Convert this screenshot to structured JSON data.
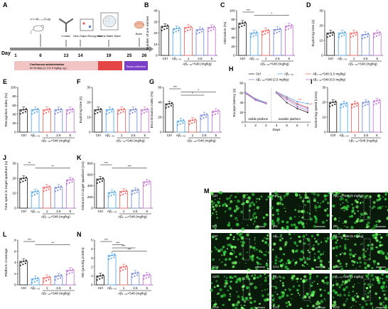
{
  "colors": {
    "ctrl": "#2b2b2b",
    "abeta": "#5aa9e6",
    "d1": "#ef6a6a",
    "d25": "#7d8fd8",
    "d5": "#c77ad8",
    "red": "#e03a3a",
    "purple": "#9a4ad0"
  },
  "panelA": {
    "letter": "A",
    "injection": "i.c.v. Aβ₁₋₄₂ (3 μg)",
    "tests": [
      "Y-maze",
      "New Object Recognition",
      "Morris Water Maze",
      "Brain"
    ],
    "day_label": "Day",
    "days": [
      "1",
      "6",
      "13",
      "14",
      "19",
      "25",
      "26"
    ],
    "admin_text": "Continuous administration",
    "admin_detail": "for 25 days (1, 2.5, 5 mg/kg, i.g.)",
    "tissue": "Tissue collection"
  },
  "chart_data": [
    {
      "letter": "B",
      "type": "bar",
      "ylabel": "Number of arm entries",
      "ylim": [
        0,
        40
      ],
      "yticks": [
        "0",
        "10",
        "20",
        "30",
        "40"
      ],
      "categories": [
        "Ctrl",
        "Aβ₁₋₄₂",
        "1",
        "2.5",
        "5"
      ],
      "values": [
        26,
        24,
        25,
        23,
        25
      ],
      "dose_label": "Aβ₁₋₄₂+548 (mg/kg)",
      "sig": []
    },
    {
      "letter": "C",
      "type": "bar",
      "ylabel": "Alternation (%)",
      "ylim": [
        0,
        100
      ],
      "yticks": [
        "0",
        "20",
        "40",
        "60",
        "80",
        "100"
      ],
      "categories": [
        "Ctrl",
        "Aβ₁₋₄₂",
        "1",
        "2.5",
        "5"
      ],
      "values": [
        72,
        50,
        55,
        58,
        66
      ],
      "dose_label": "Aβ₁₋₄₂+548 (mg/kg)",
      "sig": [
        {
          "from": 0,
          "to": 1,
          "text": "***"
        },
        {
          "from": 1,
          "to": 4,
          "text": "*"
        }
      ]
    },
    {
      "letter": "D",
      "type": "bar",
      "ylabel": "Exploring time (s)",
      "ylim": [
        0,
        30
      ],
      "yticks": [
        "0",
        "10",
        "20",
        "30"
      ],
      "categories": [
        "Ctrl",
        "Aβ₁₋₄₂",
        "1",
        "2.5",
        "5"
      ],
      "values": [
        15,
        15,
        15,
        14,
        15
      ],
      "dose_label": "Aβ₁₋₄₂+548 (mg/kg)",
      "sig": []
    },
    {
      "letter": "E",
      "type": "bar",
      "ylabel": "Recognition index (%)",
      "ylim": [
        0,
        100
      ],
      "yticks": [
        "0",
        "20",
        "40",
        "60",
        "80",
        "100"
      ],
      "categories": [
        "Ctrl",
        "Aβ₁₋₄₂",
        "1",
        "2.5",
        "5"
      ],
      "values": [
        50,
        50,
        50,
        50,
        50
      ],
      "dose_label": "Aβ₁₋₄₂+548 (mg/kg)",
      "sig": []
    },
    {
      "letter": "F",
      "type": "bar",
      "ylabel": "Exploring time (s)",
      "ylim": [
        0,
        30
      ],
      "yticks": [
        "0",
        "10",
        "20",
        "30"
      ],
      "categories": [
        "Ctrl",
        "Aβ₁₋₄₂",
        "1",
        "2.5",
        "5"
      ],
      "values": [
        15,
        15,
        15,
        15,
        15
      ],
      "dose_label": "Aβ₁₋₄₂+548 (mg/kg)",
      "sig": []
    },
    {
      "letter": "G",
      "type": "bar",
      "ylabel": "Discrimination index (%)",
      "ylim": [
        0,
        60
      ],
      "yticks": [
        "0",
        "20",
        "40",
        "60"
      ],
      "categories": [
        "Ctrl",
        "Aβ₁₋₄₂",
        "1",
        "2.5",
        "5"
      ],
      "values": [
        38,
        15,
        16,
        23,
        28
      ],
      "dose_label": "Aβ₁₋₄₂+548 (mg/kg)",
      "sig": [
        {
          "from": 0,
          "to": 1,
          "text": "***"
        },
        {
          "from": 1,
          "to": 4,
          "text": "*"
        },
        {
          "from": 1,
          "to": 3,
          "text": "*"
        }
      ]
    },
    {
      "letter": "I",
      "type": "bar",
      "ylabel": "Swimming speed (cm/s)",
      "ylim": [
        0,
        30
      ],
      "yticks": [
        "0",
        "10",
        "20",
        "30"
      ],
      "categories": [
        "Ctrl",
        "Aβ₁₋₄₂",
        "1",
        "2.5",
        "5"
      ],
      "values": [
        20,
        19,
        19,
        20,
        21
      ],
      "dose_label": "Aβ₁₋₄₂+548 (mg/kg)",
      "sig": []
    },
    {
      "letter": "J",
      "type": "bar",
      "ylabel": "Time spent in target quadrant (s)",
      "ylim": [
        0,
        30
      ],
      "yticks": [
        "0",
        "10",
        "20",
        "30"
      ],
      "categories": [
        "Ctrl",
        "Aβ₁₋₄₂",
        "1",
        "2.5",
        "5"
      ],
      "values": [
        20,
        11,
        14,
        14,
        19
      ],
      "dose_label": "Aβ₁₋₄₂+548 (mg/kg)",
      "sig": [
        {
          "from": 0,
          "to": 1,
          "text": "**"
        },
        {
          "from": 1,
          "to": 4,
          "text": "**"
        }
      ]
    },
    {
      "letter": "K",
      "type": "bar",
      "ylabel": "Distance in target quadrant (cm)",
      "ylim": [
        0,
        800
      ],
      "yticks": [
        "0",
        "200",
        "400",
        "600",
        "800"
      ],
      "categories": [
        "Ctrl",
        "Aβ₁₋₄₂",
        "1",
        "2.5",
        "5"
      ],
      "values": [
        520,
        280,
        300,
        320,
        470
      ],
      "dose_label": "Aβ₁₋₄₂+548 (mg/kg)",
      "sig": [
        {
          "from": 0,
          "to": 1,
          "text": "***"
        },
        {
          "from": 1,
          "to": 4,
          "text": "***"
        }
      ]
    },
    {
      "letter": "L",
      "type": "bar",
      "ylabel": "Platform crossings",
      "ylim": [
        0,
        8
      ],
      "yticks": [
        "0",
        "2",
        "4",
        "6",
        "8"
      ],
      "categories": [
        "Ctrl",
        "Aβ₁₋₄₂",
        "1",
        "2.5",
        "5"
      ],
      "values": [
        4.2,
        1.1,
        1.3,
        1.6,
        2.6
      ],
      "dose_label": "Aβ₁₋₄₂+548 (mg/kg)",
      "sig": [
        {
          "from": 0,
          "to": 1,
          "text": "***"
        },
        {
          "from": 1,
          "to": 4,
          "text": "**"
        }
      ]
    },
    {
      "letter": "N",
      "type": "bar",
      "ylabel": "NO (µmol/g protein)",
      "ylim": [
        0,
        5
      ],
      "yticks": [
        "0",
        "1",
        "2",
        "3",
        "4",
        "5"
      ],
      "categories": [
        "Ctrl",
        "Aβ₁₋₄₂",
        "1",
        "2.5",
        "5"
      ],
      "values": [
        1.0,
        3.3,
        2.0,
        1.3,
        1.1
      ],
      "dose_label": "Aβ₁₋₄₂+548 (mg/kg)",
      "sig": [
        {
          "from": 0,
          "to": 1,
          "text": "***"
        },
        {
          "from": 1,
          "to": 2,
          "text": "***"
        },
        {
          "from": 1,
          "to": 3,
          "text": "***"
        },
        {
          "from": 1,
          "to": 4,
          "text": "***"
        }
      ]
    },
    {
      "letter": "H",
      "type": "line",
      "ylabel": "Escape latency (s)",
      "xlabel": "Days",
      "ylim": [
        0,
        80
      ],
      "yticks": [
        "0",
        "20",
        "40",
        "60",
        "80"
      ],
      "x": [
        1,
        2,
        3,
        4,
        5,
        6,
        7
      ],
      "xticks": [
        "1",
        "2",
        "3",
        "4",
        "5",
        "6",
        "7"
      ],
      "phase_labels": [
        "visible platform",
        "invisible platform"
      ],
      "sig_text": "***",
      "legend": [
        "Ctrl",
        "Aβ₁₋₄₂",
        "Aβ₁₋₄₂+548 (1.0 mg/kg)",
        "Aβ₁₋₄₂+548 (2.5 mg/kg)",
        "Aβ₁₋₄₂+548 (5.0 mg/kg)"
      ],
      "series": [
        {
          "name": "Ctrl",
          "values": [
            60,
            45,
            38,
            60,
            40,
            28,
            20
          ]
        },
        {
          "name": "Aβ₁₋₄₂",
          "values": [
            62,
            48,
            40,
            62,
            52,
            42,
            38
          ]
        },
        {
          "name": "Aβ₁₋₄₂+548 (1.0 mg/kg)",
          "values": [
            61,
            47,
            39,
            61,
            50,
            38,
            30
          ]
        },
        {
          "name": "Aβ₁₋₄₂+548 (2.5 mg/kg)",
          "values": [
            60,
            46,
            40,
            60,
            48,
            36,
            28
          ]
        },
        {
          "name": "Aβ₁₋₄₂+548 (5.0 mg/kg)",
          "values": [
            59,
            45,
            38,
            59,
            46,
            32,
            24
          ]
        }
      ]
    }
  ],
  "panelM": {
    "letter": "M",
    "rows": [
      [
        "Ctrl",
        "Aβ₁₋₄₂",
        "Aβ₁₋₄₂+548 (5 mg/kg)"
      ],
      [
        "Ctrl",
        "Aβ₁₋₄₂",
        "Aβ₁₋₄₂+548 (5 mg/kg)"
      ],
      [
        "Ctrl",
        "Aβ₁₋₄₂",
        "Aβ₁₋₄₂+548 (5 mg/kg)"
      ]
    ],
    "regions": [
      "DG",
      "CA1",
      "CA3"
    ]
  }
}
